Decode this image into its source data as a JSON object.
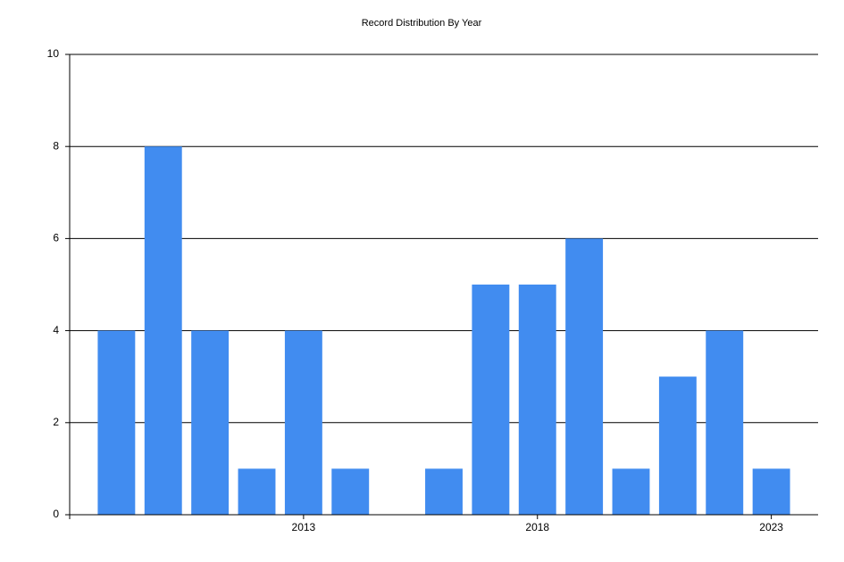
{
  "chart_data": {
    "type": "bar",
    "title": "Record Distribution By Year",
    "x": [
      2009,
      2010,
      2011,
      2012,
      2013,
      2014,
      2016,
      2017,
      2018,
      2019,
      2020,
      2021,
      2022,
      2023
    ],
    "values": [
      4,
      8,
      4,
      1,
      4,
      1,
      1,
      5,
      5,
      6,
      1,
      3,
      4,
      1
    ],
    "color": "#418cf0",
    "xlim": [
      2008,
      2024
    ],
    "xticks": [
      2013,
      2018,
      2023
    ],
    "ylim": [
      0,
      10
    ],
    "yticks": [
      0,
      2,
      4,
      6,
      8,
      10
    ],
    "grid": true
  }
}
